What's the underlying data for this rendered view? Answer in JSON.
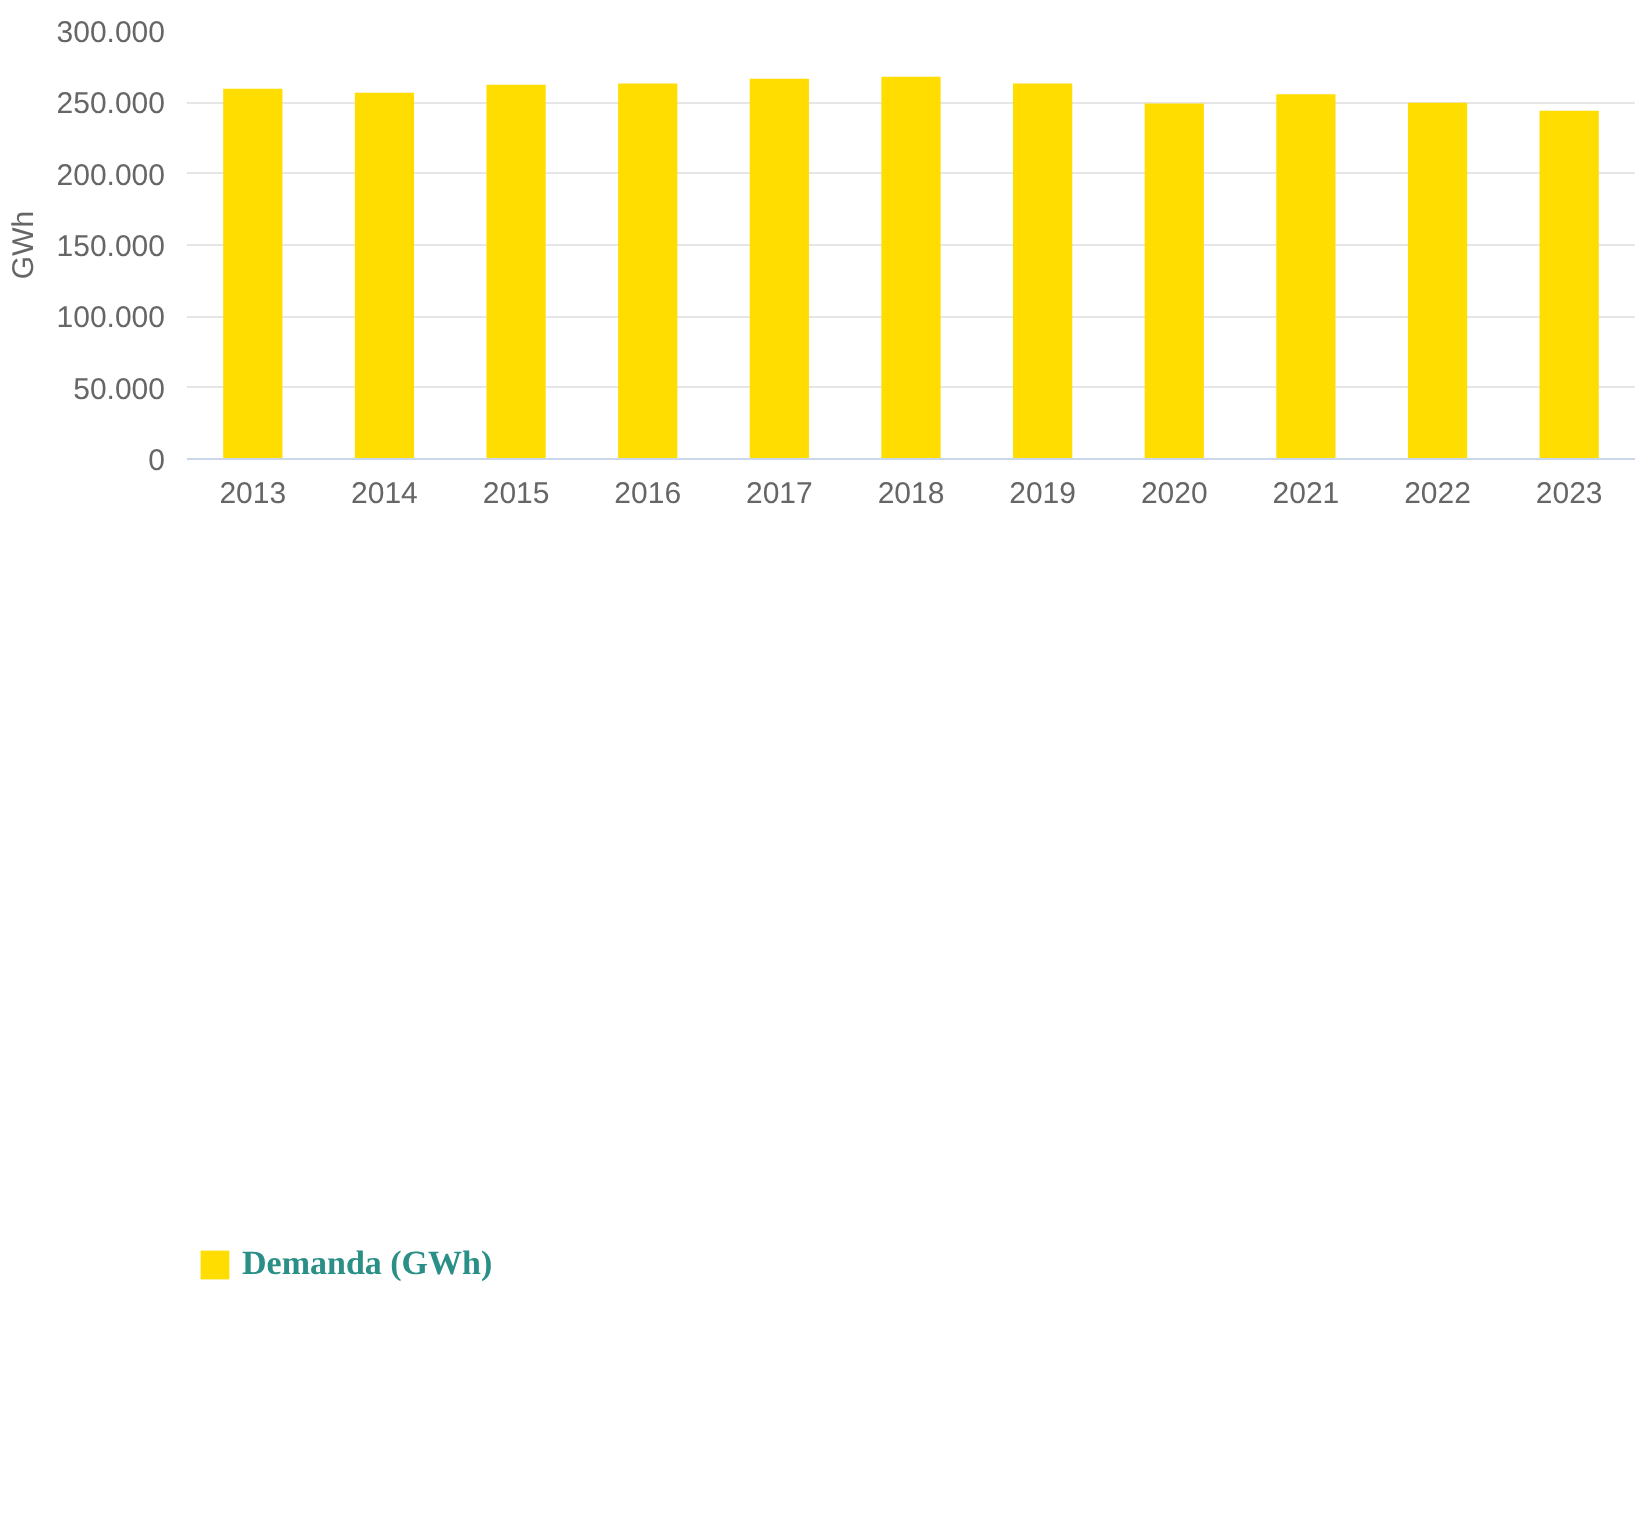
{
  "chart_data": {
    "type": "bar",
    "ylabel": "GWh",
    "categories": [
      "2013",
      "2014",
      "2015",
      "2016",
      "2017",
      "2018",
      "2019",
      "2020",
      "2021",
      "2022",
      "2023"
    ],
    "series": [
      {
        "name": "Demanda (GWh)",
        "color": "#ffdd00",
        "values": [
          259500,
          256700,
          262300,
          263200,
          266500,
          267900,
          263200,
          249200,
          255700,
          249700,
          244100
        ]
      }
    ],
    "ylim": [
      0,
      300000
    ],
    "yticks": [
      0,
      {
        "value": 50000,
        "label": "50.000"
      },
      {
        "value": 100000,
        "label": "100.000"
      },
      {
        "value": 150000,
        "label": "150.000"
      },
      {
        "value": 200000,
        "label": "200.000"
      },
      {
        "value": 250000,
        "label": "250.000"
      },
      {
        "value": 300000,
        "label": "300.000"
      }
    ],
    "grid": "y",
    "legend": "bottom left"
  }
}
